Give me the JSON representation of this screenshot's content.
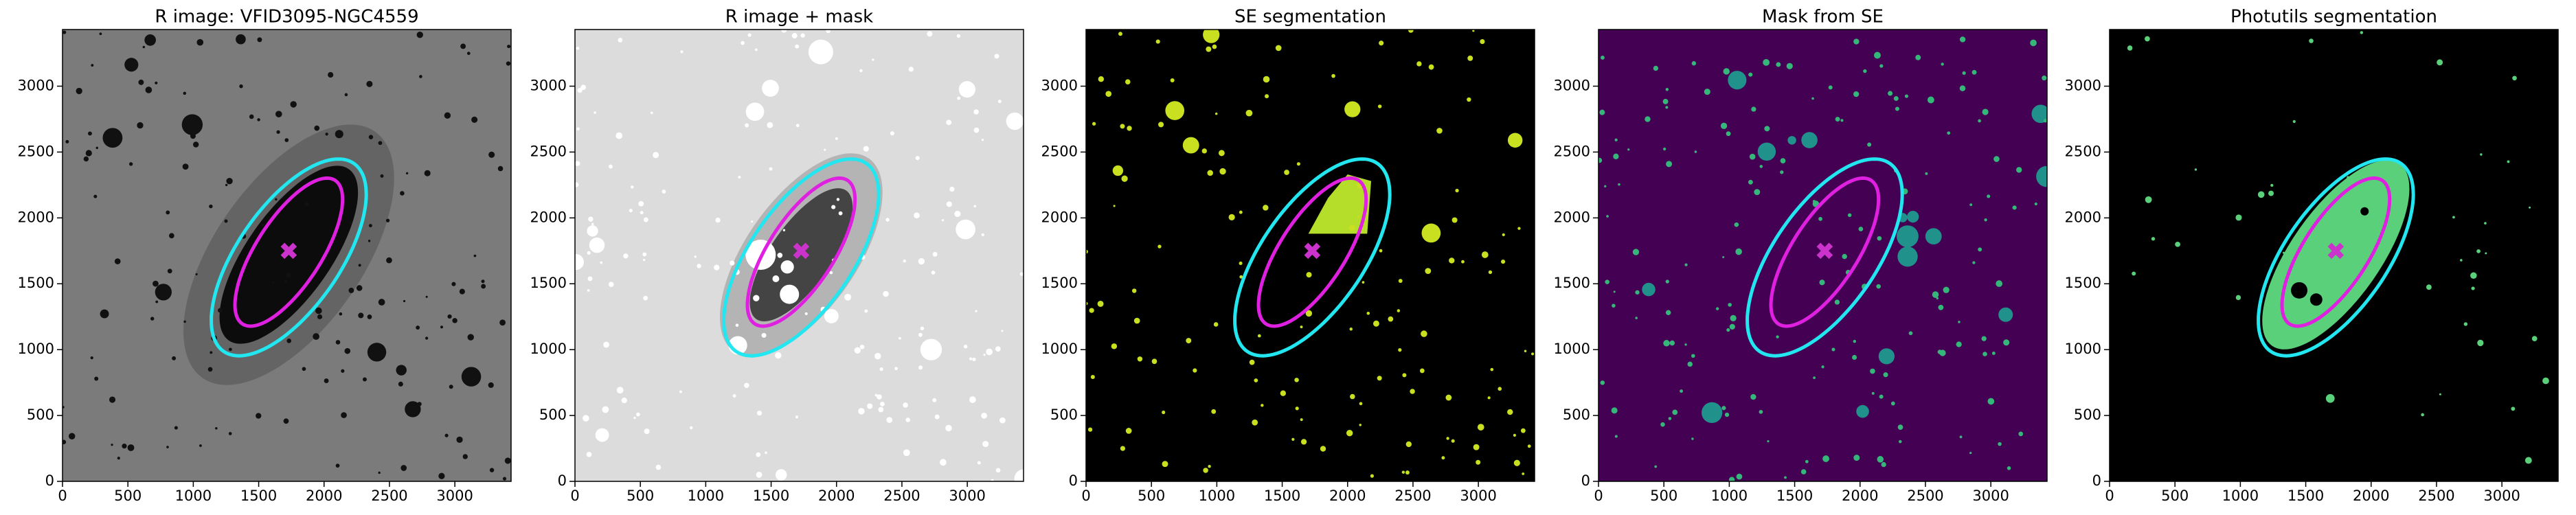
{
  "chart_data": [
    {
      "type": "image",
      "title": "R image: VFID3095-NGC4559",
      "background": "#7b7b7b",
      "xlim": [
        0,
        3430
      ],
      "ylim": [
        0,
        3430
      ],
      "xticks": [
        0,
        500,
        1000,
        1500,
        2000,
        2500,
        3000
      ],
      "yticks": [
        0,
        500,
        1000,
        1500,
        2000,
        2500,
        3000
      ],
      "ellipses": [
        {
          "x": 1730,
          "y": 1700,
          "a": 870,
          "b": 390,
          "angle": 55,
          "color": "#22e6f0"
        },
        {
          "x": 1730,
          "y": 1740,
          "a": 650,
          "b": 250,
          "angle": 57,
          "color": "#e020e0"
        }
      ],
      "marker": {
        "x": 1730,
        "y": 1750,
        "color": "#cc33cc"
      }
    },
    {
      "type": "image",
      "title": "R image + mask",
      "background": "#dcdcdc",
      "xlim": [
        0,
        3430
      ],
      "ylim": [
        0,
        3430
      ],
      "xticks": [
        0,
        500,
        1000,
        1500,
        2000,
        2500,
        3000
      ],
      "yticks": [
        0,
        500,
        1000,
        1500,
        2000,
        2500,
        3000
      ],
      "ellipses": [
        {
          "x": 1730,
          "y": 1700,
          "a": 870,
          "b": 390,
          "angle": 55,
          "color": "#22e6f0"
        },
        {
          "x": 1730,
          "y": 1740,
          "a": 650,
          "b": 250,
          "angle": 57,
          "color": "#e020e0"
        }
      ],
      "marker": {
        "x": 1730,
        "y": 1750,
        "color": "#cc33cc"
      }
    },
    {
      "type": "image",
      "title": "SE segmentation",
      "background": "#000000",
      "xlim": [
        0,
        3430
      ],
      "ylim": [
        0,
        3430
      ],
      "xticks": [
        0,
        500,
        1000,
        1500,
        2000,
        2500,
        3000
      ],
      "yticks": [
        0,
        500,
        1000,
        1500,
        2000,
        2500,
        3000
      ],
      "ellipses": [
        {
          "x": 1730,
          "y": 1700,
          "a": 870,
          "b": 390,
          "angle": 55,
          "color": "#22e6f0"
        },
        {
          "x": 1730,
          "y": 1740,
          "a": 650,
          "b": 250,
          "angle": 57,
          "color": "#e020e0"
        }
      ],
      "marker": {
        "x": 1730,
        "y": 1750,
        "color": "#cc33cc"
      }
    },
    {
      "type": "image",
      "title": "Mask from SE",
      "background": "#440154",
      "xlim": [
        0,
        3430
      ],
      "ylim": [
        0,
        3430
      ],
      "xticks": [
        0,
        500,
        1000,
        1500,
        2000,
        2500,
        3000
      ],
      "yticks": [
        0,
        500,
        1000,
        1500,
        2000,
        2500,
        3000
      ],
      "ellipses": [
        {
          "x": 1730,
          "y": 1700,
          "a": 870,
          "b": 390,
          "angle": 55,
          "color": "#22e6f0"
        },
        {
          "x": 1730,
          "y": 1740,
          "a": 650,
          "b": 250,
          "angle": 57,
          "color": "#e020e0"
        }
      ],
      "marker": {
        "x": 1730,
        "y": 1750,
        "color": "#cc33cc"
      }
    },
    {
      "type": "image",
      "title": "Photutils segmentation",
      "background": "#000000",
      "xlim": [
        0,
        3430
      ],
      "ylim": [
        0,
        3430
      ],
      "xticks": [
        0,
        500,
        1000,
        1500,
        2000,
        2500,
        3000
      ],
      "yticks": [
        0,
        500,
        1000,
        1500,
        2000,
        2500,
        3000
      ],
      "ellipses": [
        {
          "x": 1730,
          "y": 1700,
          "a": 870,
          "b": 390,
          "angle": 55,
          "color": "#22e6f0"
        },
        {
          "x": 1730,
          "y": 1740,
          "a": 650,
          "b": 250,
          "angle": 57,
          "color": "#e020e0"
        }
      ],
      "marker": {
        "x": 1730,
        "y": 1750,
        "color": "#cc33cc"
      }
    }
  ]
}
